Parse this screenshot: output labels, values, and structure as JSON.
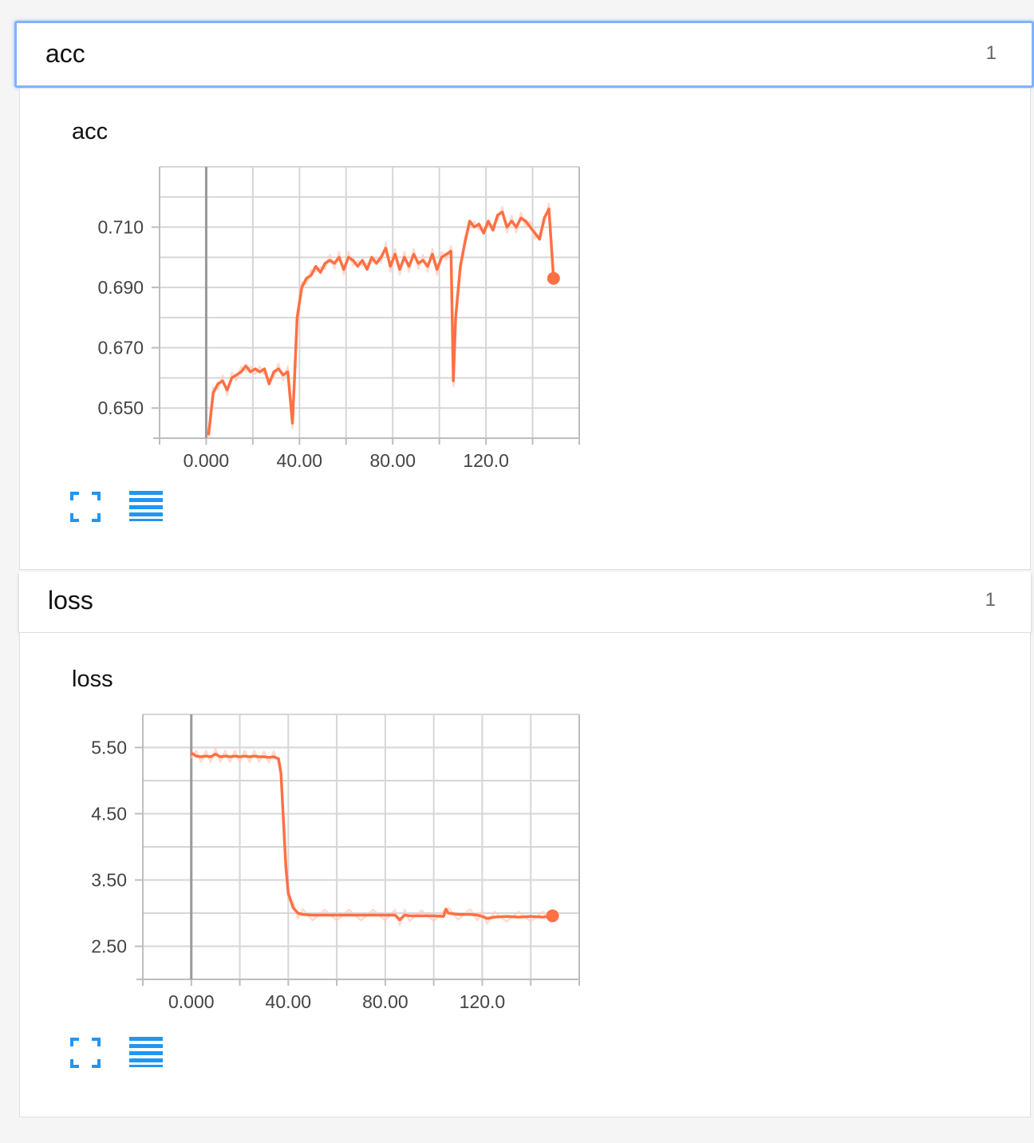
{
  "sections": [
    {
      "name": "acc",
      "count": "1"
    },
    {
      "name": "loss",
      "count": "1"
    }
  ],
  "colors": {
    "accent": "#ff7043",
    "accent_light": "#ffccbc",
    "icon": "#2196f3",
    "focus_border": "#7fb3ff"
  },
  "icons": [
    "fullscreen-icon",
    "list-icon"
  ],
  "chart_data": [
    {
      "type": "line",
      "title": "acc",
      "xlabel": "",
      "ylabel": "",
      "x_ticks": [
        "0.000",
        "40.00",
        "80.00",
        "120.0"
      ],
      "y_ticks": [
        "0.710",
        "0.690",
        "0.670",
        "0.650"
      ],
      "xlim": [
        -20,
        160
      ],
      "ylim": [
        0.64,
        0.73
      ],
      "grid": true,
      "series": [
        {
          "x": [
            1,
            3,
            5,
            7,
            9,
            11,
            13,
            15,
            17,
            19,
            21,
            23,
            25,
            27,
            29,
            31,
            33,
            35,
            37,
            38,
            39,
            41,
            43,
            45,
            47,
            49,
            51,
            53,
            55,
            57,
            59,
            61,
            63,
            65,
            67,
            69,
            71,
            73,
            75,
            77,
            79,
            81,
            83,
            85,
            87,
            89,
            91,
            93,
            95,
            97,
            99,
            101,
            103,
            105,
            106,
            107,
            109,
            111,
            113,
            115,
            117,
            119,
            121,
            123,
            125,
            127,
            129,
            131,
            133,
            135,
            137,
            139,
            141,
            143,
            145,
            147,
            149
          ],
          "y": [
            0.641,
            0.655,
            0.658,
            0.659,
            0.656,
            0.66,
            0.661,
            0.662,
            0.664,
            0.662,
            0.663,
            0.662,
            0.663,
            0.658,
            0.662,
            0.663,
            0.661,
            0.662,
            0.645,
            0.662,
            0.68,
            0.69,
            0.693,
            0.694,
            0.697,
            0.695,
            0.698,
            0.699,
            0.698,
            0.7,
            0.696,
            0.7,
            0.699,
            0.697,
            0.699,
            0.696,
            0.7,
            0.698,
            0.7,
            0.703,
            0.697,
            0.701,
            0.696,
            0.7,
            0.697,
            0.701,
            0.698,
            0.699,
            0.697,
            0.701,
            0.696,
            0.7,
            0.701,
            0.702,
            0.659,
            0.68,
            0.697,
            0.705,
            0.712,
            0.71,
            0.711,
            0.708,
            0.712,
            0.709,
            0.714,
            0.715,
            0.71,
            0.712,
            0.71,
            0.713,
            0.712,
            0.71,
            0.708,
            0.706,
            0.713,
            0.716,
            0.693
          ]
        }
      ]
    },
    {
      "type": "line",
      "title": "loss",
      "xlabel": "",
      "ylabel": "",
      "x_ticks": [
        "0.000",
        "40.00",
        "80.00",
        "120.0"
      ],
      "y_ticks": [
        "5.50",
        "4.50",
        "3.50",
        "2.50"
      ],
      "xlim": [
        -20,
        160
      ],
      "ylim": [
        2.0,
        6.0
      ],
      "grid": true,
      "series": [
        {
          "x": [
            0,
            2,
            4,
            6,
            8,
            10,
            12,
            14,
            16,
            18,
            20,
            22,
            24,
            26,
            28,
            30,
            32,
            34,
            36,
            37,
            38,
            39,
            40,
            42,
            44,
            46,
            50,
            55,
            60,
            65,
            70,
            75,
            80,
            84,
            86,
            88,
            90,
            95,
            100,
            104,
            105,
            106,
            110,
            115,
            118,
            120,
            122,
            125,
            130,
            135,
            140,
            145,
            148,
            149
          ],
          "y": [
            5.42,
            5.37,
            5.36,
            5.37,
            5.36,
            5.4,
            5.36,
            5.37,
            5.36,
            5.37,
            5.36,
            5.37,
            5.36,
            5.37,
            5.36,
            5.36,
            5.35,
            5.36,
            5.33,
            5.1,
            4.4,
            3.7,
            3.3,
            3.08,
            3.0,
            2.98,
            2.97,
            2.97,
            2.97,
            2.97,
            2.97,
            2.97,
            2.97,
            2.97,
            2.9,
            2.97,
            2.96,
            2.96,
            2.96,
            2.95,
            3.06,
            3.0,
            2.98,
            2.98,
            2.97,
            2.95,
            2.92,
            2.94,
            2.95,
            2.94,
            2.95,
            2.94,
            2.95,
            2.96
          ]
        }
      ]
    }
  ]
}
